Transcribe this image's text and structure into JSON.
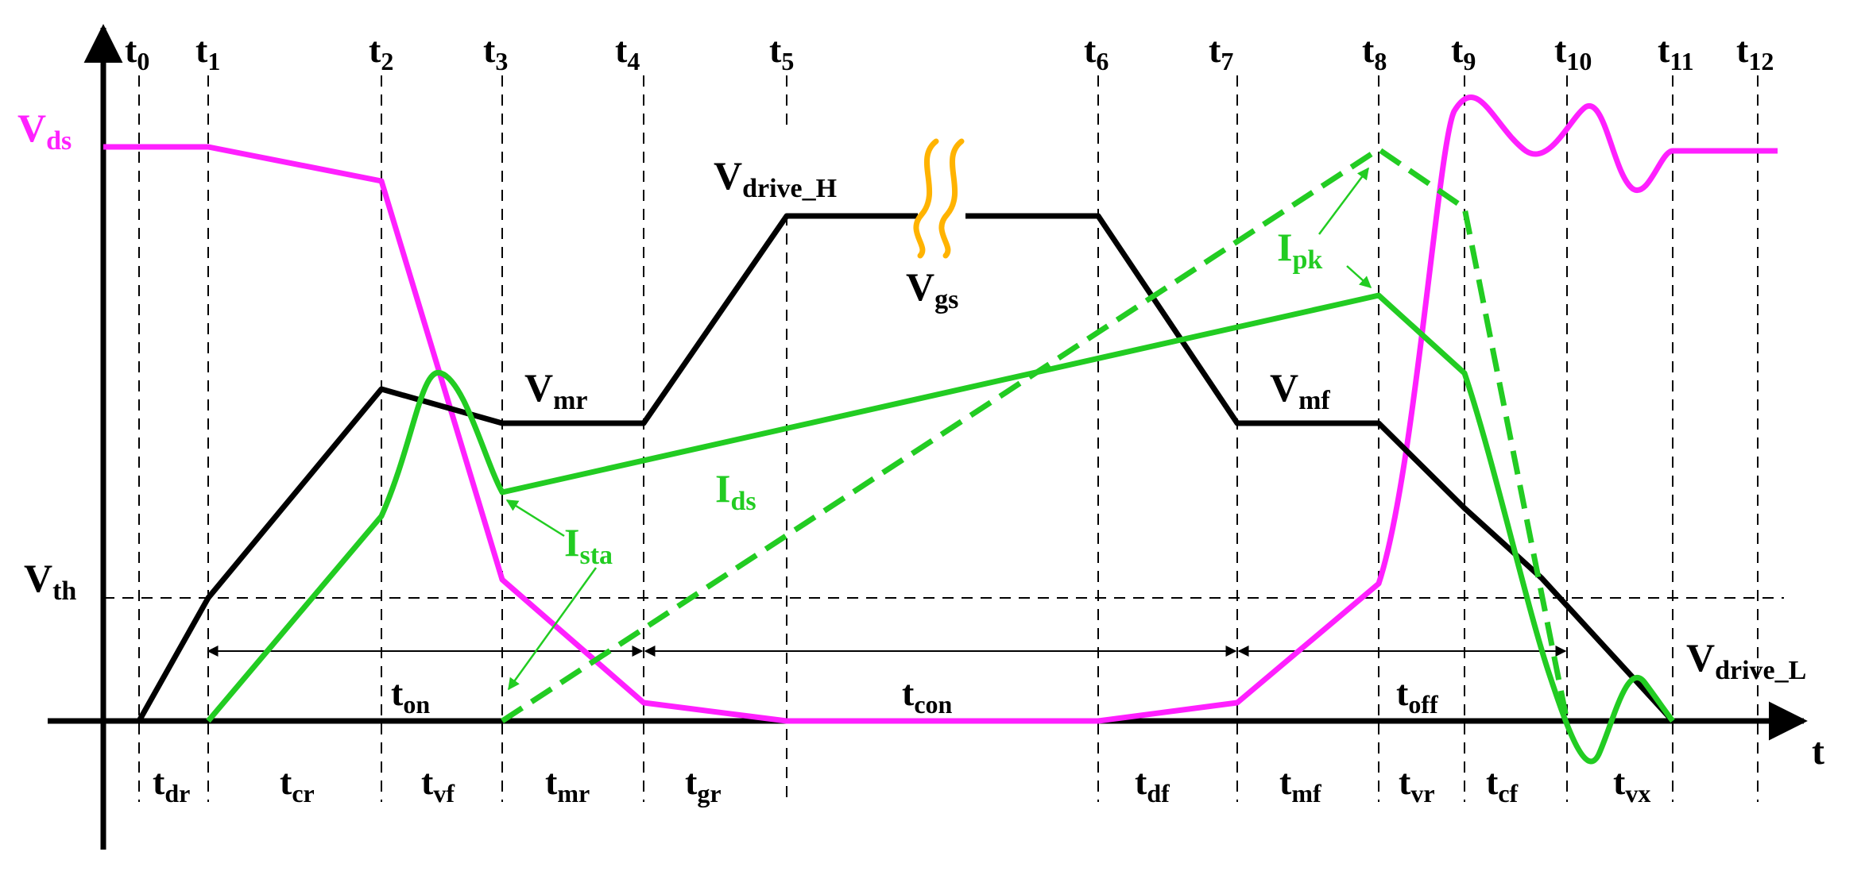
{
  "colors": {
    "vds": "#ff20ff",
    "vgs": "#000000",
    "ids": "#22cc22",
    "squiggle": "#ffb300",
    "axis": "#000000"
  },
  "time_labels": [
    {
      "base": "t",
      "sub": "0"
    },
    {
      "base": "t",
      "sub": "1"
    },
    {
      "base": "t",
      "sub": "2"
    },
    {
      "base": "t",
      "sub": "3"
    },
    {
      "base": "t",
      "sub": "4"
    },
    {
      "base": "t",
      "sub": "5"
    },
    {
      "base": "t",
      "sub": "6"
    },
    {
      "base": "t",
      "sub": "7"
    },
    {
      "base": "t",
      "sub": "8"
    },
    {
      "base": "t",
      "sub": "9"
    },
    {
      "base": "t",
      "sub": "10"
    },
    {
      "base": "t",
      "sub": "11"
    },
    {
      "base": "t",
      "sub": "12"
    }
  ],
  "interval_labels": [
    {
      "base": "t",
      "sub": "dr"
    },
    {
      "base": "t",
      "sub": "cr"
    },
    {
      "base": "t",
      "sub": "vf"
    },
    {
      "base": "t",
      "sub": "mr"
    },
    {
      "base": "t",
      "sub": "gr"
    },
    {
      "base": "t",
      "sub": "df"
    },
    {
      "base": "t",
      "sub": "mf"
    },
    {
      "base": "t",
      "sub": "vr"
    },
    {
      "base": "t",
      "sub": "cf"
    },
    {
      "base": "t",
      "sub": "vx"
    }
  ],
  "axis_label": "t",
  "signals": {
    "vds": {
      "base": "V",
      "sub": "ds"
    },
    "vth": {
      "base": "V",
      "sub": "th"
    },
    "vdrive_h": {
      "base": "V",
      "sub": "drive_H"
    },
    "vgs": {
      "base": "V",
      "sub": "gs"
    },
    "vmr": {
      "base": "V",
      "sub": "mr"
    },
    "vmf": {
      "base": "V",
      "sub": "mf"
    },
    "vdrive_l": {
      "base": "V",
      "sub": "drive_L"
    },
    "ids": {
      "base": "I",
      "sub": "ds"
    },
    "ipk": {
      "base": "I",
      "sub": "pk"
    },
    "ista": {
      "base": "I",
      "sub": "sta"
    }
  },
  "spans": {
    "ton": {
      "base": "t",
      "sub": "on"
    },
    "tcon": {
      "base": "t",
      "sub": "con"
    },
    "toff": {
      "base": "t",
      "sub": "off"
    }
  }
}
